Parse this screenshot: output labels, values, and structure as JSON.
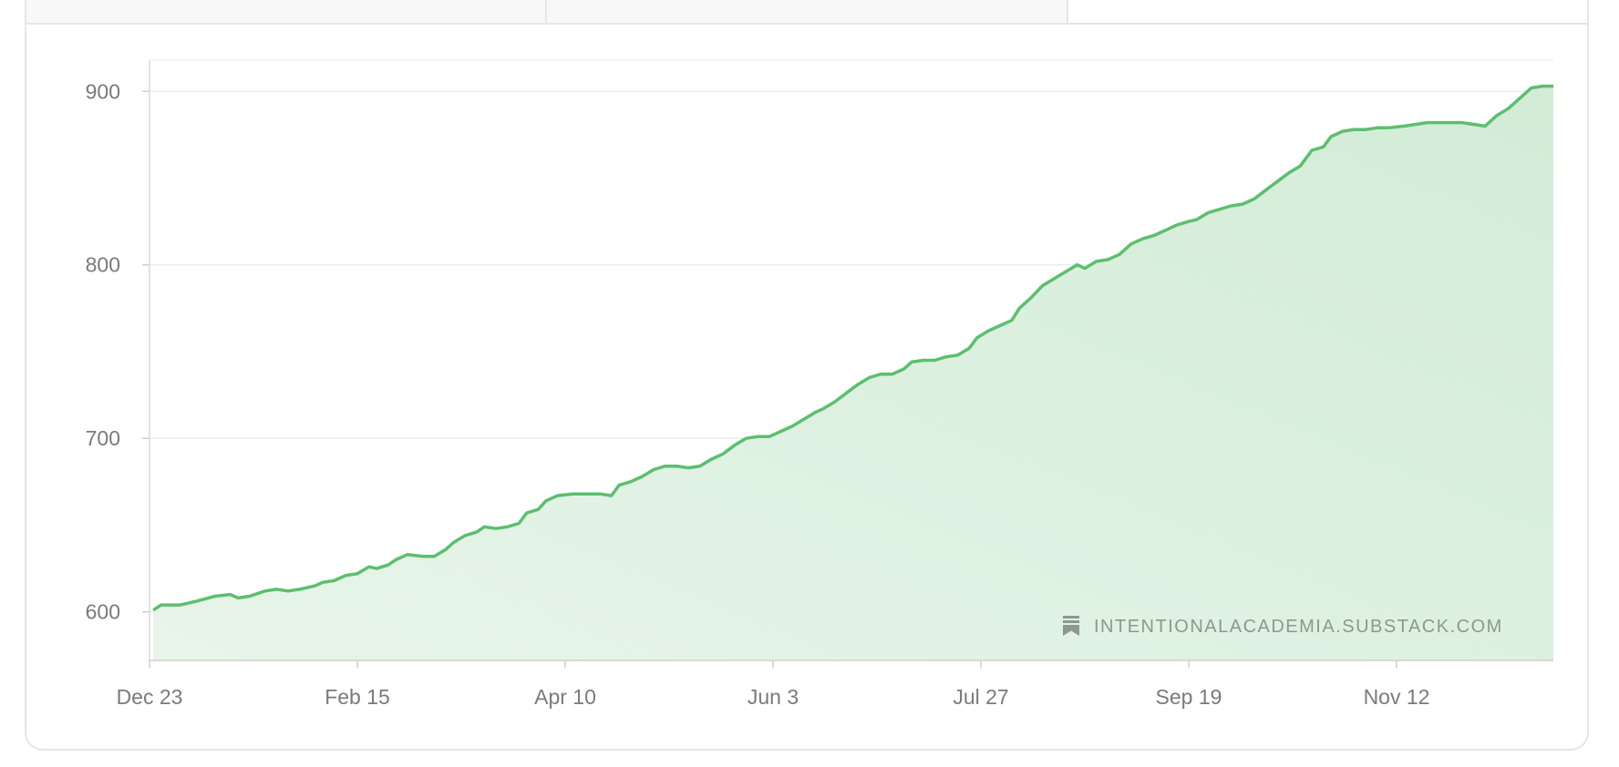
{
  "chart_data": {
    "type": "area",
    "title": "",
    "xlabel": "",
    "ylabel": "",
    "x_ticks": [
      "Dec 23",
      "Feb 15",
      "Apr 10",
      "Jun 3",
      "Jul 27",
      "Sep 19",
      "Nov 12"
    ],
    "y_ticks": [
      600,
      700,
      800,
      900
    ],
    "ylim": [
      572,
      918
    ],
    "grid": "horizontal",
    "series": [
      {
        "color": "#5cbf6e",
        "fill": "#dcefdf",
        "points": [
          [
            "Dec 23",
            601
          ],
          [
            "Dec 25",
            604
          ],
          [
            "Dec 30",
            604
          ],
          [
            "Jan 3",
            606
          ],
          [
            "Jan 8",
            609
          ],
          [
            "Jan 12",
            610
          ],
          [
            "Jan 14",
            608
          ],
          [
            "Jan 17",
            609
          ],
          [
            "Jan 21",
            612
          ],
          [
            "Jan 24",
            613
          ],
          [
            "Jan 27",
            612
          ],
          [
            "Jan 30",
            613
          ],
          [
            "Feb 3",
            615
          ],
          [
            "Feb 5",
            617
          ],
          [
            "Feb 8",
            618
          ],
          [
            "Feb 11",
            621
          ],
          [
            "Feb 14",
            622
          ],
          [
            "Feb 17",
            626
          ],
          [
            "Feb 19",
            625
          ],
          [
            "Feb 22",
            627
          ],
          [
            "Feb 24",
            630
          ],
          [
            "Feb 27",
            633
          ],
          [
            "Mar 2",
            632
          ],
          [
            "Mar 5",
            632
          ],
          [
            "Mar 8",
            636
          ],
          [
            "Mar 10",
            640
          ],
          [
            "Mar 13",
            644
          ],
          [
            "Mar 16",
            646
          ],
          [
            "Mar 18",
            649
          ],
          [
            "Mar 21",
            648
          ],
          [
            "Mar 24",
            649
          ],
          [
            "Mar 27",
            651
          ],
          [
            "Mar 29",
            657
          ],
          [
            "Apr 1",
            659
          ],
          [
            "Apr 3",
            664
          ],
          [
            "Apr 6",
            667
          ],
          [
            "Apr 10",
            668
          ],
          [
            "Apr 13",
            668
          ],
          [
            "Apr 17",
            668
          ],
          [
            "Apr 20",
            667
          ],
          [
            "Apr 22",
            673
          ],
          [
            "Apr 25",
            675
          ],
          [
            "Apr 28",
            678
          ],
          [
            "May 1",
            682
          ],
          [
            "May 4",
            684
          ],
          [
            "May 7",
            684
          ],
          [
            "May 10",
            683
          ],
          [
            "May 13",
            684
          ],
          [
            "May 16",
            688
          ],
          [
            "May 19",
            691
          ],
          [
            "May 22",
            696
          ],
          [
            "May 25",
            700
          ],
          [
            "May 28",
            701
          ],
          [
            "May 31",
            701
          ],
          [
            "Jun 3",
            704
          ],
          [
            "Jun 6",
            707
          ],
          [
            "Jun 9",
            711
          ],
          [
            "Jun 12",
            715
          ],
          [
            "Jun 14",
            717
          ],
          [
            "Jun 17",
            721
          ],
          [
            "Jun 20",
            726
          ],
          [
            "Jun 23",
            731
          ],
          [
            "Jun 26",
            735
          ],
          [
            "Jun 29",
            737
          ],
          [
            "Jul 2",
            737
          ],
          [
            "Jul 5",
            740
          ],
          [
            "Jul 7",
            744
          ],
          [
            "Jul 10",
            745
          ],
          [
            "Jul 13",
            745
          ],
          [
            "Jul 16",
            747
          ],
          [
            "Jul 19",
            748
          ],
          [
            "Jul 22",
            752
          ],
          [
            "Jul 24",
            758
          ],
          [
            "Jul 27",
            762
          ],
          [
            "Jul 30",
            765
          ],
          [
            "Aug 2",
            768
          ],
          [
            "Aug 4",
            775
          ],
          [
            "Aug 7",
            781
          ],
          [
            "Aug 10",
            788
          ],
          [
            "Aug 13",
            792
          ],
          [
            "Aug 16",
            796
          ],
          [
            "Aug 19",
            800
          ],
          [
            "Aug 21",
            798
          ],
          [
            "Aug 24",
            802
          ],
          [
            "Aug 27",
            803
          ],
          [
            "Aug 30",
            806
          ],
          [
            "Sep 2",
            812
          ],
          [
            "Sep 5",
            815
          ],
          [
            "Sep 8",
            817
          ],
          [
            "Sep 11",
            820
          ],
          [
            "Sep 14",
            823
          ],
          [
            "Sep 17",
            825
          ],
          [
            "Sep 19",
            826
          ],
          [
            "Sep 22",
            830
          ],
          [
            "Sep 25",
            832
          ],
          [
            "Sep 28",
            834
          ],
          [
            "Oct 1",
            835
          ],
          [
            "Oct 4",
            838
          ],
          [
            "Oct 7",
            843
          ],
          [
            "Oct 10",
            848
          ],
          [
            "Oct 13",
            853
          ],
          [
            "Oct 16",
            857
          ],
          [
            "Oct 19",
            866
          ],
          [
            "Oct 22",
            868
          ],
          [
            "Oct 24",
            874
          ],
          [
            "Oct 27",
            877
          ],
          [
            "Oct 30",
            878
          ],
          [
            "Nov 2",
            878
          ],
          [
            "Nov 5",
            879
          ],
          [
            "Nov 8",
            879
          ],
          [
            "Nov 12",
            880
          ],
          [
            "Nov 15",
            881
          ],
          [
            "Nov 18",
            882
          ],
          [
            "Nov 21",
            882
          ],
          [
            "Nov 24",
            882
          ],
          [
            "Nov 27",
            882
          ],
          [
            "Nov 30",
            881
          ],
          [
            "Dec 3",
            880
          ],
          [
            "Dec 6",
            886
          ],
          [
            "Dec 9",
            890
          ],
          [
            "Dec 12",
            896
          ],
          [
            "Dec 15",
            902
          ],
          [
            "Dec 18",
            903
          ]
        ]
      }
    ]
  },
  "watermark": {
    "text": "INTENTIONALACADEMIA.SUBSTACK.COM",
    "icon": "bookmark-icon"
  }
}
